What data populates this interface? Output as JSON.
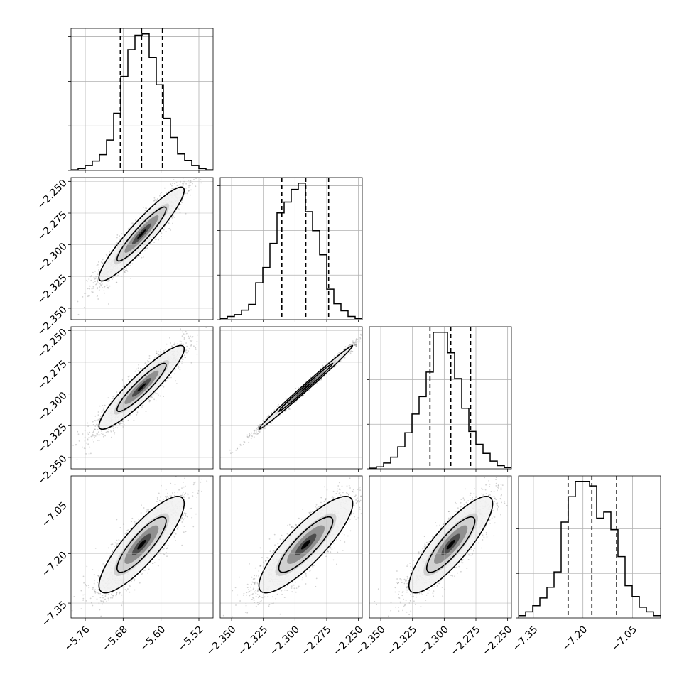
{
  "chart_data": {
    "type": "corner",
    "title": "",
    "colors": {
      "line": "#000000",
      "scatter": "#7f7f7f",
      "grid": "#b0b0b0",
      "fill_levels": [
        "#f2f2f2",
        "#cfcfcf",
        "#8c8c8c",
        "#4a4a4a",
        "#000000"
      ]
    },
    "grid": true,
    "parameters": [
      {
        "name": "",
        "range": [
          -5.79,
          -5.49
        ],
        "ticks": [
          -5.76,
          -5.68,
          -5.6,
          -5.52
        ],
        "tick_labels": [
          "−5.76",
          "−5.68",
          "−5.60",
          "−5.52"
        ],
        "quantiles": [
          -5.686,
          -5.641,
          -5.597
        ],
        "mean": -5.641,
        "sd": 0.045
      },
      {
        "name": "",
        "range": [
          -2.359,
          -2.247
        ],
        "ticks": [
          -2.35,
          -2.325,
          -2.3,
          -2.275,
          -2.25
        ],
        "tick_labels": [
          "−2.350",
          "−2.325",
          "−2.300",
          "−2.275",
          "−2.250"
        ],
        "quantiles": [
          -2.3104,
          -2.2915,
          -2.2735
        ],
        "mean": -2.2915,
        "sd": 0.0185
      },
      {
        "name": "",
        "range": [
          -2.359,
          -2.247
        ],
        "ticks": [
          -2.35,
          -2.325,
          -2.3,
          -2.275,
          -2.25
        ],
        "tick_labels": [
          "−2.350",
          "−2.325",
          "−2.300",
          "−2.275",
          "−2.250"
        ],
        "quantiles": [
          -2.3112,
          -2.2948,
          -2.2792
        ],
        "mean": -2.2948,
        "sd": 0.0165
      },
      {
        "name": "",
        "range": [
          -7.395,
          -6.965
        ],
        "ticks": [
          -7.35,
          -7.2,
          -7.05
        ],
        "tick_labels": [
          "−7.35",
          "−7.20",
          "−7.05"
        ],
        "quantiles": [
          -7.245,
          -7.173,
          -7.098
        ],
        "mean": -7.173,
        "sd": 0.073
      }
    ],
    "correlations": [
      {
        "pair": [
          0,
          1
        ],
        "r": 0.93
      },
      {
        "pair": [
          0,
          2
        ],
        "r": 0.92
      },
      {
        "pair": [
          1,
          2
        ],
        "r": 0.995
      },
      {
        "pair": [
          0,
          3
        ],
        "r": 0.85
      },
      {
        "pair": [
          1,
          3
        ],
        "r": 0.85
      },
      {
        "pair": [
          2,
          3
        ],
        "r": 0.85
      }
    ],
    "histograms": [
      {
        "param": 0,
        "bin_edges": [
          -5.79,
          -5.775,
          -5.76,
          -5.745,
          -5.73,
          -5.715,
          -5.7,
          -5.685,
          -5.67,
          -5.655,
          -5.64,
          -5.625,
          -5.61,
          -5.595,
          -5.58,
          -5.565,
          -5.55,
          -5.535,
          -5.52,
          -5.505,
          -5.49
        ],
        "counts": [
          1,
          3,
          8,
          15,
          25,
          48,
          90,
          148,
          190,
          213,
          215,
          178,
          135,
          82,
          52,
          26,
          16,
          8,
          3,
          1
        ]
      },
      {
        "param": 1,
        "bin_edges": [
          -2.359,
          -2.3534,
          -2.3478,
          -2.3422,
          -2.3366,
          -2.331,
          -2.3254,
          -2.3198,
          -2.3142,
          -2.3086,
          -2.303,
          -2.2974,
          -2.2918,
          -2.2862,
          -2.2806,
          -2.275,
          -2.2694,
          -2.2638,
          -2.2582,
          -2.2526,
          -2.247
        ],
        "counts": [
          2,
          5,
          8,
          15,
          24,
          58,
          82,
          120,
          168,
          185,
          205,
          215,
          170,
          140,
          102,
          48,
          25,
          14,
          5,
          2
        ]
      },
      {
        "param": 2,
        "bin_edges": [
          -2.359,
          -2.3534,
          -2.3478,
          -2.3422,
          -2.3366,
          -2.331,
          -2.3254,
          -2.3198,
          -2.3142,
          -2.3086,
          -2.303,
          -2.2974,
          -2.2918,
          -2.2862,
          -2.2806,
          -2.275,
          -2.2694,
          -2.2638,
          -2.2582,
          -2.2526,
          -2.247
        ],
        "counts": [
          1,
          3,
          9,
          18,
          34,
          56,
          85,
          112,
          150,
          212,
          212,
          180,
          140,
          94,
          58,
          38,
          24,
          12,
          5,
          2
        ]
      },
      {
        "param": 3,
        "bin_edges": [
          -7.395,
          -7.3735,
          -7.352,
          -7.3305,
          -7.309,
          -7.2875,
          -7.266,
          -7.2445,
          -7.223,
          -7.2015,
          -7.18,
          -7.1585,
          -7.137,
          -7.1155,
          -7.094,
          -7.0725,
          -7.051,
          -7.0295,
          -7.008,
          -6.9865,
          -6.965
        ],
        "counts": [
          3,
          8,
          16,
          26,
          40,
          60,
          125,
          158,
          178,
          178,
          172,
          130,
          138,
          115,
          80,
          42,
          28,
          14,
          8,
          3
        ]
      }
    ],
    "scatter_points": 2200,
    "contour_levels": [
      0.39,
      0.86
    ]
  }
}
